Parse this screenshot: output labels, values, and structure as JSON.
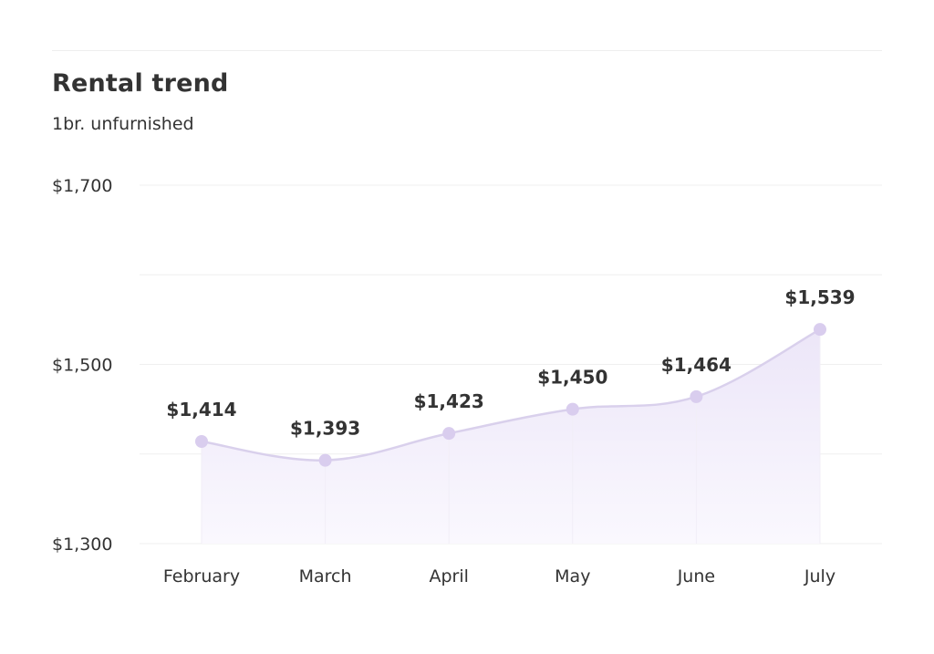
{
  "header": {
    "title": "Rental trend",
    "subtitle": "1br. unfurnished"
  },
  "colors": {
    "line": "#d9d0ec",
    "point": "#d9cdee",
    "area_top": "#ece6f8",
    "area_bottom": "#faf8fe",
    "grid": "#efefef",
    "text": "#333333"
  },
  "chart_data": {
    "type": "area",
    "title": "Rental trend",
    "subtitle": "1br. unfurnished",
    "categories": [
      "February",
      "March",
      "April",
      "May",
      "June",
      "July"
    ],
    "values": [
      1414,
      1393,
      1423,
      1450,
      1464,
      1539
    ],
    "data_labels": [
      "$1,414",
      "$1,393",
      "$1,423",
      "$1,450",
      "$1,464",
      "$1,539"
    ],
    "ylim": [
      1300,
      1700
    ],
    "yticks": [
      1300,
      1500,
      1700
    ],
    "ytick_labels": [
      "$1,300",
      "$1,500",
      "$1,700"
    ],
    "gridlines": [
      1300,
      1400,
      1500,
      1600,
      1700
    ],
    "grid": true,
    "legend": "none"
  }
}
